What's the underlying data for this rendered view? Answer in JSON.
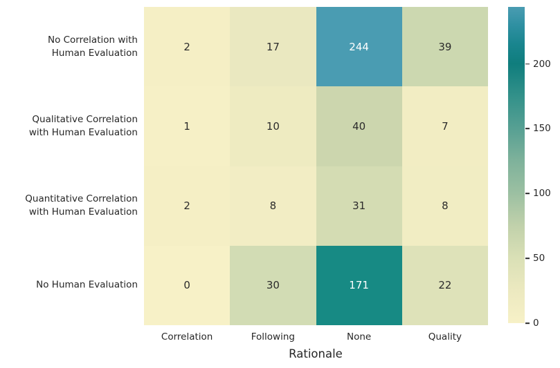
{
  "colors": {
    "background": "#ffffff",
    "text": "#262626",
    "annotation_dark": "#2b2b2b",
    "annotation_light": "#ffffff",
    "tick_mark": "#262626"
  },
  "chart_data": {
    "type": "heatmap",
    "title": "",
    "xlabel": "Rationale",
    "ylabel": "",
    "x_categories": [
      "Correlation",
      "Following",
      "None",
      "Quality"
    ],
    "y_categories": [
      "No Correlation with\nHuman Evaluation",
      "Qualitative Correlation\nwith Human Evaluation",
      "Quantitative Correlation\nwith Human Evaluation",
      "No Human Evaluation"
    ],
    "values": [
      [
        2,
        17,
        244,
        39
      ],
      [
        1,
        10,
        40,
        7
      ],
      [
        2,
        8,
        31,
        8
      ],
      [
        0,
        30,
        171,
        22
      ]
    ],
    "cell_colors": [
      [
        "#f5efc5",
        "#eae8c0",
        "#4a9cb2",
        "#ccd8b0"
      ],
      [
        "#f6f0c6",
        "#eeebc1",
        "#ccd6ae",
        "#f2edc3"
      ],
      [
        "#f5efc5",
        "#f2edc4",
        "#d4dcb3",
        "#f1edc3"
      ],
      [
        "#f7f1c7",
        "#d2dcb4",
        "#178a84",
        "#dee2b9"
      ]
    ],
    "annot_text_colors": [
      [
        "#2b2b2b",
        "#2b2b2b",
        "#ffffff",
        "#2b2b2b"
      ],
      [
        "#2b2b2b",
        "#2b2b2b",
        "#2b2b2b",
        "#2b2b2b"
      ],
      [
        "#2b2b2b",
        "#2b2b2b",
        "#2b2b2b",
        "#2b2b2b"
      ],
      [
        "#2b2b2b",
        "#2b2b2b",
        "#ffffff",
        "#2b2b2b"
      ]
    ],
    "grid_on": false,
    "legend_position": "none",
    "colorbar": {
      "min": 0,
      "max": 244,
      "ticks": [
        200,
        150,
        100,
        50,
        0
      ],
      "gradient_stops": [
        {
          "value": 0,
          "color": "#f7f1c7"
        },
        {
          "value": 25,
          "color": "#ece9c0"
        },
        {
          "value": 50,
          "color": "#dae0b6"
        },
        {
          "value": 75,
          "color": "#c1d1ab"
        },
        {
          "value": 100,
          "color": "#9cc0a2"
        },
        {
          "value": 125,
          "color": "#7fb29b"
        },
        {
          "value": 150,
          "color": "#57a093"
        },
        {
          "value": 175,
          "color": "#33918a"
        },
        {
          "value": 200,
          "color": "#0f7d7d"
        },
        {
          "value": 215,
          "color": "#19858e"
        },
        {
          "value": 230,
          "color": "#2f90a2"
        },
        {
          "value": 244,
          "color": "#4a9cb2"
        }
      ]
    }
  }
}
